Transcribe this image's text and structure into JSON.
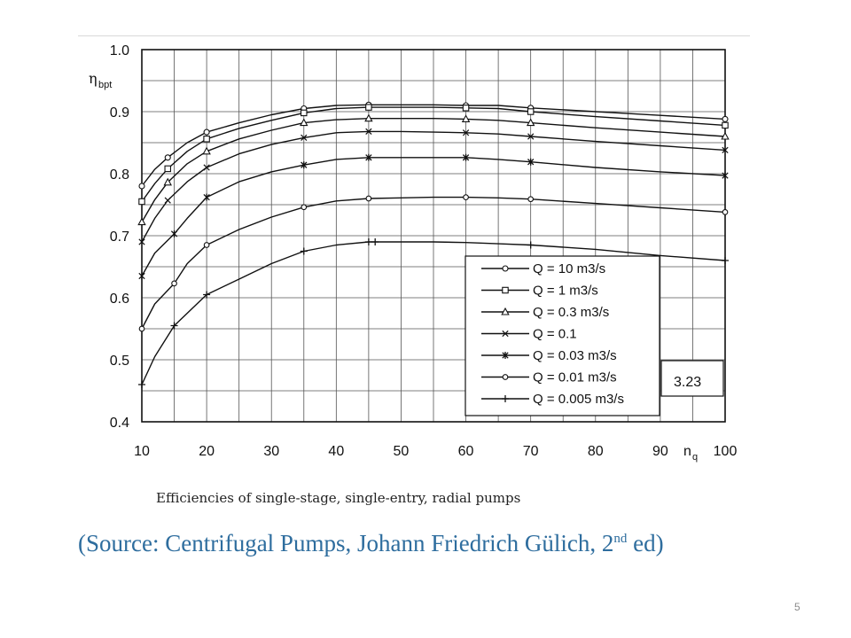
{
  "slide": {
    "caption": "Efficiencies of single-stage, single-entry, radial pumps",
    "source_prefix": "(Source: Centrifugal Pumps, Johann Friedrich Gülich, 2",
    "source_sup": "nd",
    "source_suffix": " ed)",
    "page_number": "5"
  },
  "chart_data": {
    "type": "line",
    "title": "",
    "xlabel": "n",
    "xlabel_sub": "q",
    "ylabel": "η",
    "ylabel_sub": "bpt",
    "xlim": [
      10,
      100
    ],
    "ylim": [
      0.4,
      1.0
    ],
    "x_ticks": [
      10,
      20,
      30,
      40,
      50,
      60,
      70,
      80,
      90,
      100
    ],
    "y_ticks": [
      0.4,
      0.5,
      0.6,
      0.7,
      0.8,
      0.9,
      1.0
    ],
    "grid": true,
    "legend_position": "bottom-right",
    "figure_label": "3.23",
    "series": [
      {
        "name": "Q = 10 m3/s",
        "marker": "circle",
        "x": [
          10,
          12,
          14,
          17,
          20,
          25,
          30,
          35,
          40,
          45,
          50,
          55,
          60,
          65,
          70,
          80,
          90,
          100
        ],
        "y": [
          0.78,
          0.807,
          0.826,
          0.85,
          0.867,
          0.882,
          0.895,
          0.905,
          0.91,
          0.911,
          0.911,
          0.911,
          0.91,
          0.91,
          0.906,
          0.9,
          0.894,
          0.888
        ],
        "markers_x": [
          10,
          14,
          20,
          35,
          45,
          60,
          70,
          100
        ]
      },
      {
        "name": "Q = 1 m3/s",
        "marker": "square",
        "x": [
          10,
          12,
          14,
          17,
          20,
          25,
          30,
          35,
          40,
          45,
          50,
          55,
          60,
          65,
          70,
          80,
          90,
          100
        ],
        "y": [
          0.755,
          0.784,
          0.808,
          0.836,
          0.856,
          0.873,
          0.886,
          0.898,
          0.905,
          0.907,
          0.907,
          0.907,
          0.906,
          0.905,
          0.9,
          0.892,
          0.885,
          0.878
        ],
        "markers_x": [
          10,
          14,
          20,
          35,
          45,
          60,
          70,
          100
        ]
      },
      {
        "name": "Q = 0.3 m3/s",
        "marker": "triangle",
        "x": [
          10,
          12,
          14,
          17,
          20,
          25,
          30,
          35,
          40,
          45,
          50,
          55,
          60,
          65,
          70,
          80,
          90,
          100
        ],
        "y": [
          0.722,
          0.758,
          0.786,
          0.816,
          0.836,
          0.856,
          0.87,
          0.882,
          0.887,
          0.889,
          0.889,
          0.889,
          0.888,
          0.886,
          0.882,
          0.874,
          0.867,
          0.86
        ],
        "markers_x": [
          10,
          14,
          20,
          35,
          45,
          60,
          70,
          100
        ]
      },
      {
        "name": "Q = 0.1",
        "marker": "x",
        "x": [
          10,
          12,
          14,
          17,
          20,
          25,
          30,
          35,
          40,
          45,
          50,
          55,
          60,
          65,
          70,
          80,
          90,
          100
        ],
        "y": [
          0.69,
          0.728,
          0.757,
          0.787,
          0.81,
          0.832,
          0.847,
          0.858,
          0.866,
          0.868,
          0.868,
          0.867,
          0.866,
          0.864,
          0.86,
          0.852,
          0.845,
          0.838
        ],
        "markers_x": [
          10,
          14,
          20,
          35,
          45,
          60,
          70,
          100
        ]
      },
      {
        "name": "Q = 0.03 m3/s",
        "marker": "asterisk",
        "x": [
          10,
          12,
          15,
          17,
          20,
          25,
          30,
          35,
          40,
          45,
          50,
          55,
          60,
          65,
          70,
          80,
          90,
          100
        ],
        "y": [
          0.635,
          0.672,
          0.703,
          0.728,
          0.762,
          0.787,
          0.803,
          0.814,
          0.823,
          0.826,
          0.826,
          0.826,
          0.826,
          0.823,
          0.819,
          0.81,
          0.803,
          0.797
        ],
        "markers_x": [
          10,
          15,
          20,
          35,
          45,
          60,
          70,
          100
        ]
      },
      {
        "name": "Q = 0.01 m3/s",
        "marker": "small-circle",
        "x": [
          10,
          12,
          15,
          17,
          20,
          25,
          30,
          35,
          40,
          45,
          50,
          55,
          60,
          65,
          70,
          80,
          90,
          100
        ],
        "y": [
          0.55,
          0.59,
          0.623,
          0.655,
          0.685,
          0.71,
          0.73,
          0.746,
          0.756,
          0.76,
          0.761,
          0.762,
          0.762,
          0.761,
          0.759,
          0.752,
          0.745,
          0.738
        ],
        "markers_x": [
          10,
          15,
          20,
          35,
          45,
          60,
          70,
          100
        ]
      },
      {
        "name": "Q = 0.005 m3/s",
        "marker": "plus",
        "x": [
          10,
          12,
          15,
          17,
          20,
          25,
          30,
          35,
          40,
          45,
          50,
          55,
          60,
          65,
          70,
          80,
          90,
          100
        ],
        "y": [
          0.46,
          0.505,
          0.555,
          0.575,
          0.605,
          0.63,
          0.655,
          0.675,
          0.685,
          0.69,
          0.69,
          0.69,
          0.689,
          0.687,
          0.685,
          0.678,
          0.668,
          0.66
        ],
        "markers_x": [
          10,
          15,
          20,
          35,
          45,
          46,
          70,
          100
        ]
      }
    ]
  }
}
